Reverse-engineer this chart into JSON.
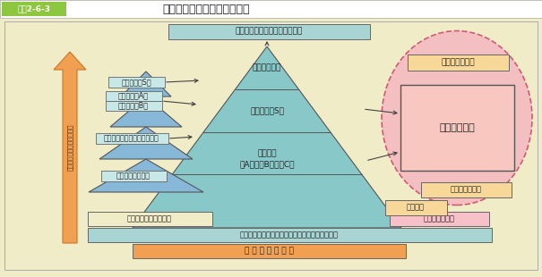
{
  "bg_color": "#f0ecc8",
  "header_bg": "#8dc63f",
  "header_text": "図表2-6-3",
  "header_title": "科学研究費補助金の研究種目",
  "title_top_box_text": "国際的に評価の高い研究の推進",
  "title_top_box_color": "#a8d4d4",
  "orange_arrow_color": "#f0a050",
  "orange_arrow_edge": "#cc7722",
  "left_arrow_text": "研究費の規模／研究の発展",
  "main_pyramid_color": "#88c8c8",
  "small_pyramid_color": "#88b8d8",
  "ellipse_color": "#f4b8c0",
  "ellipse_edge": "#cc4466",
  "pink_rect_color": "#f8c8c0",
  "pink_rect_edge": "#555555",
  "bottom_light_bar_color": "#a8d4d4",
  "bottom_orange_bar_color": "#f0a050",
  "bottom_light_bar_text": "研究者の自由な発想に基づく研究の多様性の確保",
  "bottom_orange_bar_text": "研 究 種 目 の 趣 旨",
  "label_young_s": "若手研究（S）",
  "label_young_a": "若手研究（A）",
  "label_young_b": "若手研究（B）",
  "label_young_startup": "若手研究（スタートアップ）",
  "label_special_member": "特別研究員奨励費",
  "label_young_support": "若手研究者の自立支援",
  "label_kiban_s": "基盤研究（S）",
  "label_kiban_abc_1": "基盤研究",
  "label_kiban_abc_2": "（A）・（B）・（C）",
  "label_toku_suishin": "特別推進研究",
  "label_houga": "萌芽研究",
  "label_tokutei": "特定領域研究",
  "label_gakujutsu": "学術創成研究費",
  "label_tokubetsu_sokushin": "特別研究促進費",
  "label_shinryoiki": "新領域の形成等",
  "box_light_color": "#c8e8e8",
  "box_orange_color": "#f8d898",
  "box_edge": "#666666"
}
